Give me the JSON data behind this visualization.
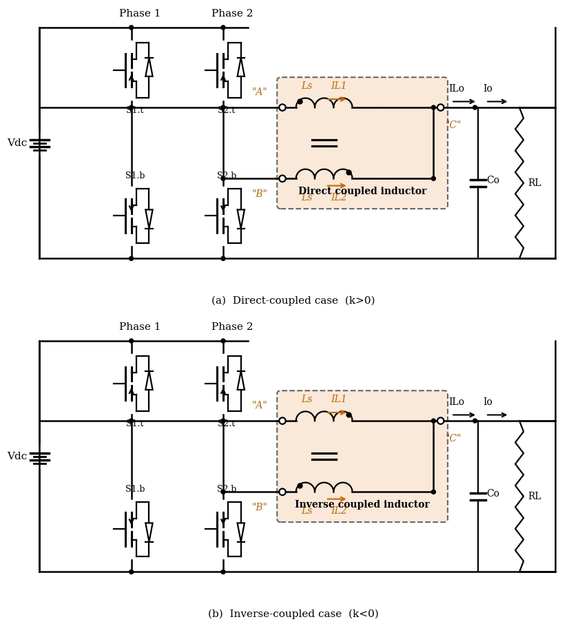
{
  "fig_width": 9.46,
  "fig_height": 9.05,
  "bg_color": "#ffffff",
  "line_color": "#000000",
  "orange_color": "#cc6600",
  "inductor_box_fill": "#fae8d8",
  "inductor_box_edge": "#666666",
  "caption_a": "(a)  Direct-coupled case  (k>0)",
  "caption_b": "(b)  Inverse-coupled case  (k<0)",
  "label_phase1": "Phase 1",
  "label_phase2": "Phase 2",
  "label_vdc": "Vdc",
  "label_s1t": "S1.t",
  "label_s1b": "S1.b",
  "label_s2t": "S2.t",
  "label_s2b": "S2.b",
  "label_A": "\"A\"",
  "label_B": "\"B\"",
  "label_C": "\"C\"",
  "label_Ls1": "Ls",
  "label_Ls2": "Ls",
  "label_IL1": "IL1",
  "label_IL2": "IL2",
  "label_ILo": "ILo",
  "label_Io": "Io",
  "label_Co": "Co",
  "label_RL": "RL",
  "label_direct": "Direct coupled inductor",
  "label_inverse": "Inverse coupled inductor"
}
